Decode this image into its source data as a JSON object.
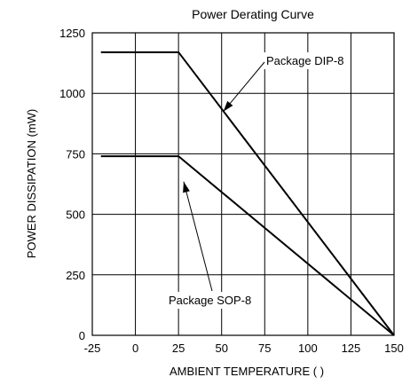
{
  "chart_data": {
    "type": "line",
    "title": "Power Derating Curve",
    "xlabel": "AMBIENT TEMPERATURE (    )",
    "ylabel": "POWER DISSIPATION (mW)",
    "xlim": [
      -25,
      150
    ],
    "ylim": [
      0,
      1250
    ],
    "x_ticks": [
      -25,
      0,
      25,
      50,
      75,
      100,
      125,
      150
    ],
    "y_ticks": [
      0,
      250,
      500,
      750,
      1000,
      1250
    ],
    "x_tick_labels": [
      "-25",
      "0",
      "25",
      "50",
      "75",
      "100",
      "125",
      "150"
    ],
    "y_tick_labels": [
      "0",
      "250",
      "500",
      "750",
      "1000",
      "1250"
    ],
    "grid": true,
    "series": [
      {
        "name": "Package DIP-8",
        "x": [
          -20,
          25,
          150
        ],
        "y": [
          1170,
          1170,
          0
        ]
      },
      {
        "name": "Package SOP-8",
        "x": [
          -20,
          25,
          150
        ],
        "y": [
          740,
          740,
          0
        ]
      }
    ],
    "annotations": [
      {
        "text": "Package DIP-8",
        "arrow_to": [
          51,
          925
        ]
      },
      {
        "text": "Package SOP-8",
        "arrow_to": [
          28,
          635
        ]
      }
    ]
  }
}
